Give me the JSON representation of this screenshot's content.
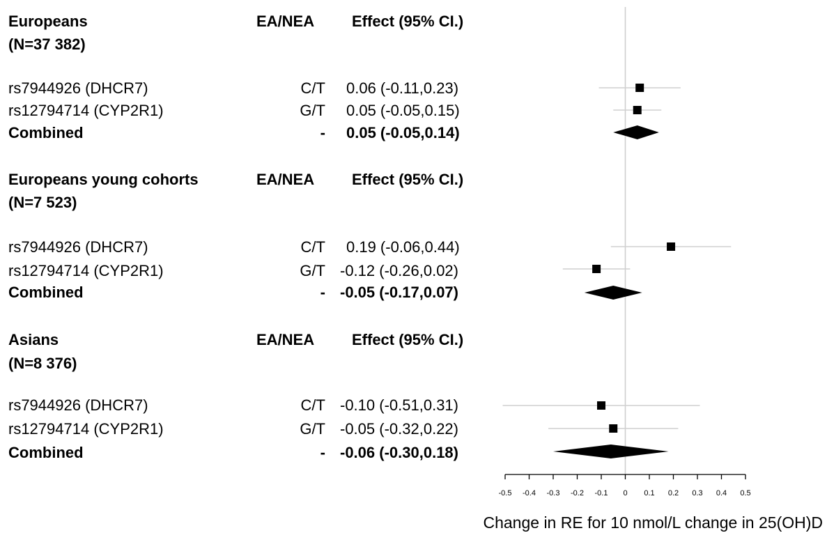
{
  "groups": [
    {
      "title": "Europeans",
      "n": "(N=37 382)",
      "col_ea": "EA/NEA",
      "col_effect": "Effect (95% CI.)",
      "rows": [
        {
          "label": "rs7944926 (DHCR7)",
          "ea": "C/T",
          "effect": "0.06 (-0.11,0.23)"
        },
        {
          "label": "rs12794714 (CYP2R1)",
          "ea": "G/T",
          "effect": "0.05 (-0.05,0.15)"
        },
        {
          "label": "Combined",
          "ea": "-",
          "effect": "0.05 (-0.05,0.14)"
        }
      ]
    },
    {
      "title": "Europeans young cohorts",
      "n": "(N=7 523)",
      "col_ea": "EA/NEA",
      "col_effect": "Effect (95% CI.)",
      "rows": [
        {
          "label": "rs7944926 (DHCR7)",
          "ea": "C/T",
          "effect": "0.19 (-0.06,0.44)"
        },
        {
          "label": "rs12794714 (CYP2R1)",
          "ea": "G/T",
          "effect": "-0.12 (-0.26,0.02)"
        },
        {
          "label": "Combined",
          "ea": "-",
          "effect": "-0.05 (-0.17,0.07)"
        }
      ]
    },
    {
      "title": "Asians",
      "n": "(N=8 376)",
      "col_ea": "EA/NEA",
      "col_effect": "Effect (95% CI.)",
      "rows": [
        {
          "label": "rs7944926 (DHCR7)",
          "ea": "C/T",
          "effect": "-0.10 (-0.51,0.31)"
        },
        {
          "label": "rs12794714 (CYP2R1)",
          "ea": "G/T",
          "effect": "-0.05 (-0.32,0.22)"
        },
        {
          "label": "Combined",
          "ea": "-",
          "effect": "-0.06 (-0.30,0.18)"
        }
      ]
    }
  ],
  "chart_data": {
    "type": "forest",
    "xlabel": "Change in RE for 10 nmol/L change in 25(OH)D",
    "xlim": [
      -0.5,
      0.5
    ],
    "ticks": [
      -0.5,
      -0.4,
      -0.3,
      -0.2,
      -0.1,
      0,
      0.1,
      0.2,
      0.3,
      0.4,
      0.5
    ],
    "tick_labels": [
      "-0.5",
      "-0.4",
      "-0.3",
      "-0.2",
      "-0.1",
      "0",
      "0.1",
      "0.2",
      "0.3",
      "0.4",
      "0.5"
    ],
    "reference_line": 0,
    "estimates": [
      {
        "group": "Europeans",
        "label": "rs7944926 (DHCR7)",
        "est": 0.06,
        "lo": -0.11,
        "hi": 0.23,
        "kind": "square"
      },
      {
        "group": "Europeans",
        "label": "rs12794714 (CYP2R1)",
        "est": 0.05,
        "lo": -0.05,
        "hi": 0.15,
        "kind": "square"
      },
      {
        "group": "Europeans",
        "label": "Combined",
        "est": 0.05,
        "lo": -0.05,
        "hi": 0.14,
        "kind": "diamond"
      },
      {
        "group": "Europeans young cohorts",
        "label": "rs7944926 (DHCR7)",
        "est": 0.19,
        "lo": -0.06,
        "hi": 0.44,
        "kind": "square"
      },
      {
        "group": "Europeans young cohorts",
        "label": "rs12794714 (CYP2R1)",
        "est": -0.12,
        "lo": -0.26,
        "hi": 0.02,
        "kind": "square"
      },
      {
        "group": "Europeans young cohorts",
        "label": "Combined",
        "est": -0.05,
        "lo": -0.17,
        "hi": 0.07,
        "kind": "diamond"
      },
      {
        "group": "Asians",
        "label": "rs7944926 (DHCR7)",
        "est": -0.1,
        "lo": -0.51,
        "hi": 0.31,
        "kind": "square"
      },
      {
        "group": "Asians",
        "label": "rs12794714 (CYP2R1)",
        "est": -0.05,
        "lo": -0.32,
        "hi": 0.22,
        "kind": "square"
      },
      {
        "group": "Asians",
        "label": "Combined",
        "est": -0.06,
        "lo": -0.3,
        "hi": 0.18,
        "kind": "diamond"
      }
    ],
    "colors": {
      "marker": "#000000",
      "ci_line": "#cfcfcf",
      "reference": "#cfcfcf",
      "axis": "#000000"
    }
  }
}
